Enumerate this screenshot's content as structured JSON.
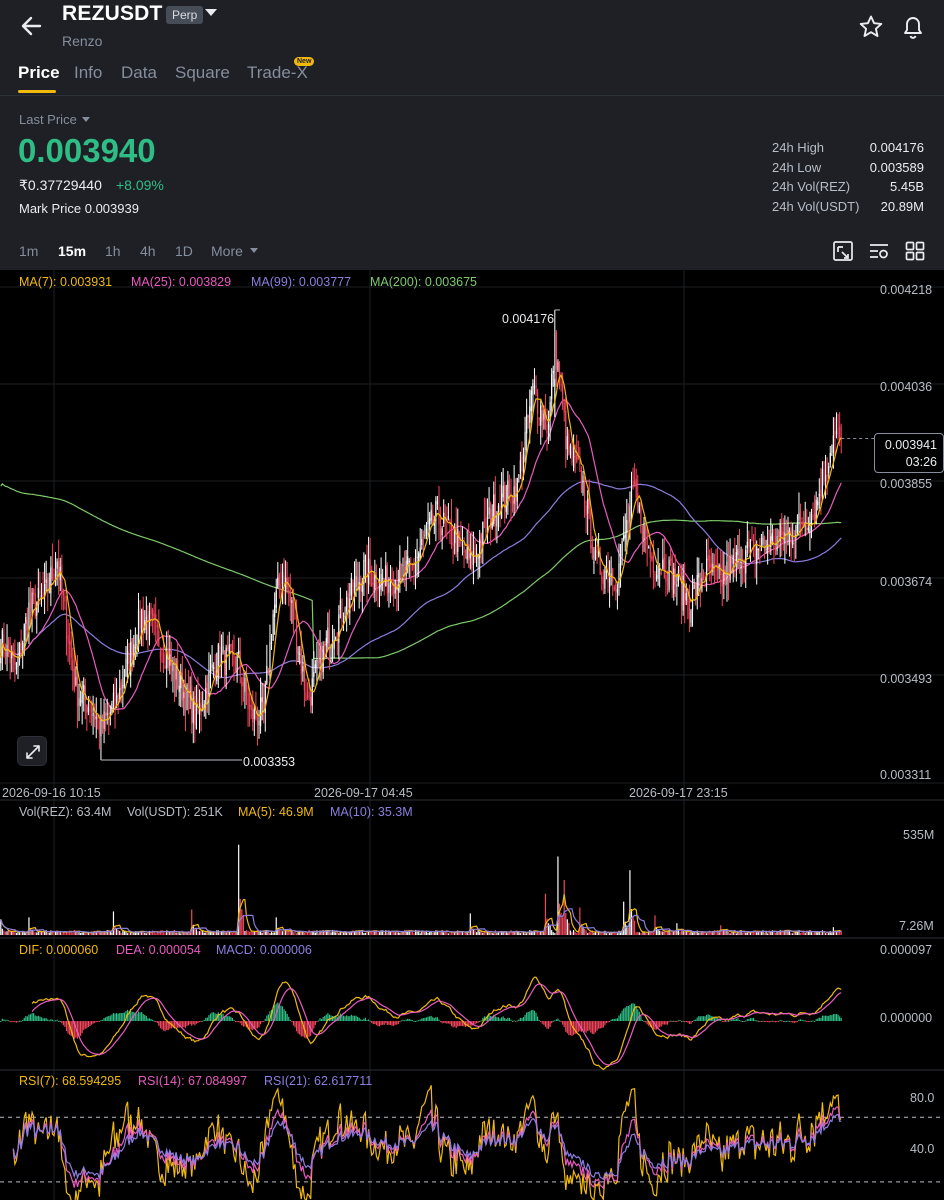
{
  "header": {
    "symbol": "REZUSDT",
    "contract_badge": "Perp",
    "project_name": "Renzo",
    "back_icon": "arrow-left-icon",
    "favorite_icon": "star-icon",
    "alert_icon": "bell-icon"
  },
  "tabs": [
    {
      "label": "Price",
      "active": true
    },
    {
      "label": "Info",
      "active": false
    },
    {
      "label": "Data",
      "active": false
    },
    {
      "label": "Square",
      "active": false
    },
    {
      "label": "Trade-X",
      "active": false,
      "badge": "New"
    }
  ],
  "ticker": {
    "last_price_label": "Last Price",
    "last_price": "0.003940",
    "inr_price": "₹0.37729440",
    "change_pct": "+8.09%",
    "mark_price": "Mark Price 0.003939",
    "stats": [
      {
        "label": "24h High",
        "value": "0.004176"
      },
      {
        "label": "24h Low",
        "value": "0.003589"
      },
      {
        "label": "24h Vol(REZ)",
        "value": "5.45B"
      },
      {
        "label": "24h Vol(USDT)",
        "value": "20.89M"
      }
    ]
  },
  "intervals": [
    {
      "label": "1m",
      "active": false
    },
    {
      "label": "15m",
      "active": true
    },
    {
      "label": "1h",
      "active": false
    },
    {
      "label": "4h",
      "active": false
    },
    {
      "label": "1D",
      "active": false
    },
    {
      "label": "More",
      "active": false
    }
  ],
  "toolbar_icons": [
    "chart-type-icon",
    "indicator-settings-icon",
    "layout-grid-icon"
  ],
  "colors": {
    "up": "#2ebd85",
    "down": "#f6465d",
    "ma7": "#f0b90b",
    "ma25": "#e95bc1",
    "ma99": "#8b7ee0",
    "ma200": "#7ecb6a",
    "panel": "#1e2026",
    "chart_bg": "#000000"
  },
  "price_chart": {
    "ma_legend": [
      {
        "label": "MA(7): 0.003931",
        "color": "#f0b90b"
      },
      {
        "label": "MA(25): 0.003829",
        "color": "#e95bc1"
      },
      {
        "label": "MA(99): 0.003777",
        "color": "#8b7ee0"
      },
      {
        "label": "MA(200): 0.003675",
        "color": "#7ecb6a"
      }
    ],
    "y_ticks": [
      "0.004218",
      "0.004036",
      "0.003855",
      "0.003674",
      "0.003493",
      "0.003311"
    ],
    "x_ticks": [
      "2026-09-16 10:15",
      "2026-09-17 04:45",
      "2026-09-17 23:15"
    ],
    "high_annotation": "0.004176",
    "low_annotation": "0.003353",
    "current_price_tag": "0.003941",
    "countdown": "03:26",
    "expand_icon": "expand-arrows-icon"
  },
  "volume_panel": {
    "legend": [
      {
        "label": "Vol(REZ): 63.4M",
        "color": "#b7bdc6"
      },
      {
        "label": "Vol(USDT): 251K",
        "color": "#b7bdc6"
      },
      {
        "label": "MA(5): 46.9M",
        "color": "#f0b90b"
      },
      {
        "label": "MA(10): 35.3M",
        "color": "#8b7ee0"
      }
    ],
    "y_ticks": [
      "535M",
      "7.26M"
    ]
  },
  "macd_panel": {
    "legend": [
      {
        "label": "DIF: 0.000060",
        "color": "#f0b90b"
      },
      {
        "label": "DEA: 0.000054",
        "color": "#e95bc1"
      },
      {
        "label": "MACD: 0.000006",
        "color": "#8b7ee0"
      }
    ],
    "y_ticks": [
      "0.000097",
      "0.000000"
    ]
  },
  "rsi_panel": {
    "legend": [
      {
        "label": "RSI(7): 68.594295",
        "color": "#f0b90b"
      },
      {
        "label": "RSI(14): 67.084997",
        "color": "#e95bc1"
      },
      {
        "label": "RSI(21): 62.617711",
        "color": "#8b7ee0"
      }
    ],
    "y_ticks": [
      "80.0",
      "40.0"
    ]
  },
  "chart_data": {
    "type": "candlestick",
    "price_range": [
      0.003311,
      0.004218
    ],
    "price_anchors": [
      [
        0,
        0.00357
      ],
      [
        10,
        0.00352
      ],
      [
        18,
        0.00363
      ],
      [
        28,
        0.00365
      ],
      [
        36,
        0.00372
      ],
      [
        48,
        0.00348
      ],
      [
        58,
        0.00345
      ],
      [
        64,
        0.00341
      ],
      [
        74,
        0.00346
      ],
      [
        90,
        0.00362
      ],
      [
        100,
        0.00358
      ],
      [
        110,
        0.00352
      ],
      [
        125,
        0.00343
      ],
      [
        138,
        0.00354
      ],
      [
        152,
        0.00353
      ],
      [
        160,
        0.00343
      ],
      [
        168,
        0.00344
      ],
      [
        174,
        0.00362
      ],
      [
        180,
        0.0037
      ],
      [
        186,
        0.00363
      ],
      [
        196,
        0.00346
      ],
      [
        210,
        0.00358
      ],
      [
        232,
        0.0037
      ],
      [
        246,
        0.00368
      ],
      [
        262,
        0.0037
      ],
      [
        278,
        0.0038
      ],
      [
        292,
        0.00375
      ],
      [
        300,
        0.00371
      ],
      [
        316,
        0.00382
      ],
      [
        330,
        0.00385
      ],
      [
        340,
        0.00403
      ],
      [
        350,
        0.00396
      ],
      [
        354,
        0.00412
      ],
      [
        362,
        0.00392
      ],
      [
        372,
        0.00386
      ],
      [
        380,
        0.00371
      ],
      [
        394,
        0.00369
      ],
      [
        404,
        0.00384
      ],
      [
        416,
        0.00372
      ],
      [
        424,
        0.00371
      ],
      [
        432,
        0.00368
      ],
      [
        440,
        0.00364
      ],
      [
        450,
        0.0037
      ],
      [
        460,
        0.00368
      ],
      [
        474,
        0.00373
      ],
      [
        492,
        0.00375
      ],
      [
        506,
        0.00377
      ],
      [
        520,
        0.00381
      ],
      [
        532,
        0.00394
      ]
    ],
    "annotated_high": 0.004176,
    "annotated_low": 0.003353,
    "last_close": 0.003941,
    "volume_range": [
      0,
      535
    ],
    "volume_unit": "M",
    "volume_spikes": [
      [
        0,
        80
      ],
      [
        18,
        90
      ],
      [
        72,
        120
      ],
      [
        122,
        130
      ],
      [
        152,
        460
      ],
      [
        176,
        90
      ],
      [
        300,
        110
      ],
      [
        348,
        210
      ],
      [
        356,
        400
      ],
      [
        360,
        280
      ],
      [
        370,
        140
      ],
      [
        398,
        170
      ],
      [
        402,
        330
      ],
      [
        418,
        100
      ],
      [
        432,
        60
      ],
      [
        460,
        50
      ],
      [
        532,
        40
      ]
    ],
    "macd_range": [
      -6e-05,
      9.7e-05
    ],
    "rsi_range": [
      20,
      90
    ],
    "rsi_levels": [
      70,
      30
    ]
  }
}
